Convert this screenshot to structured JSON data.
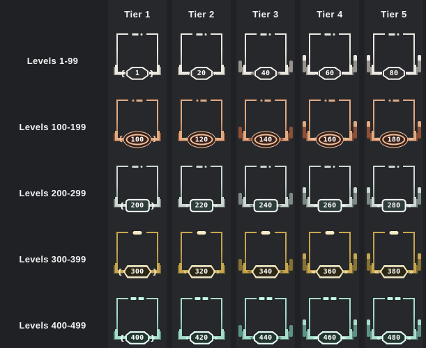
{
  "header": {
    "tiers": [
      "Tier 1",
      "Tier 2",
      "Tier 3",
      "Tier 4",
      "Tier 5"
    ]
  },
  "rows": [
    {
      "label": "Levels 1-99",
      "levels": [
        "1",
        "20",
        "40",
        "60",
        "80"
      ]
    },
    {
      "label": "Levels 100-199",
      "levels": [
        "100",
        "120",
        "140",
        "160",
        "180"
      ]
    },
    {
      "label": "Levels 200-299",
      "levels": [
        "200",
        "220",
        "240",
        "260",
        "280"
      ]
    },
    {
      "label": "Levels 300-399",
      "levels": [
        "300",
        "320",
        "340",
        "360",
        "380"
      ]
    },
    {
      "label": "Levels 400-499",
      "levels": [
        "400",
        "420",
        "440",
        "460",
        "480"
      ]
    }
  ],
  "colors": {
    "background": "#1f2124",
    "column_stripe": "#27292c",
    "text": "#f0f1f3",
    "row_themes": {
      "levels_1_99": {
        "frame": "#ebe8e2",
        "accent": "#96938e",
        "badge_fill": "#2e3031",
        "badge_ring": "#f2f0ea"
      },
      "levels_100_199": {
        "frame": "#e2aa83",
        "accent": "#8d4f36",
        "badge_fill": "#3a2019",
        "badge_ring": "#eec29e"
      },
      "levels_200_299": {
        "frame": "#ccd7d2",
        "accent": "#7d8a86",
        "badge_fill": "#2f3d3a",
        "badge_ring": "#f4fbf8"
      },
      "levels_300_399": {
        "frame": "#c7a64f",
        "accent": "#867134",
        "badge_fill": "#2c2614",
        "badge_ring": "#f2e7bf"
      },
      "levels_400_499": {
        "frame": "#a8dcca",
        "accent": "#5f9286",
        "badge_fill": "#20362f",
        "badge_ring": "#ecfff8"
      }
    }
  }
}
